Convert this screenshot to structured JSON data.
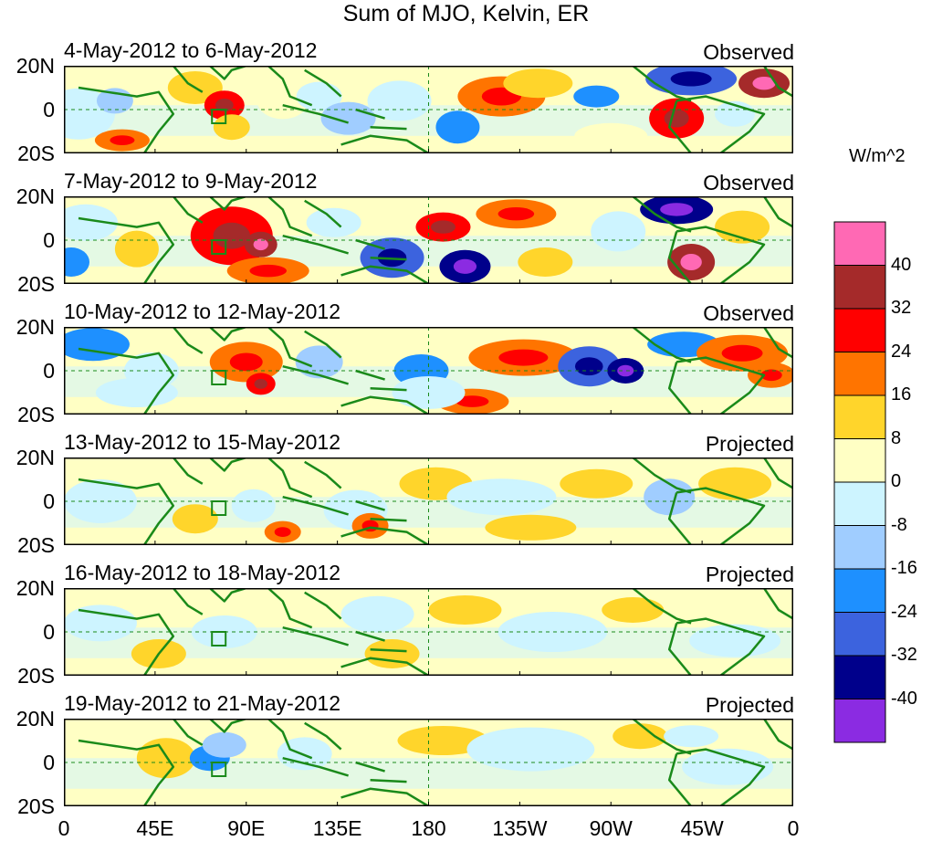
{
  "title": "Sum of MJO, Kelvin, ER",
  "units": "W/m^2",
  "y_ticks": [
    "20N",
    "0",
    "20S"
  ],
  "x_ticks": [
    "0",
    "45E",
    "90E",
    "135E",
    "180",
    "135W",
    "90W",
    "45W",
    "0"
  ],
  "panels": [
    {
      "dates": "4-May-2012 to 6-May-2012",
      "label": "Observed"
    },
    {
      "dates": "7-May-2012 to 9-May-2012",
      "label": "Observed"
    },
    {
      "dates": "10-May-2012 to 12-May-2012",
      "label": "Observed"
    },
    {
      "dates": "13-May-2012 to 15-May-2012",
      "label": "Projected"
    },
    {
      "dates": "16-May-2012 to 18-May-2012",
      "label": "Projected"
    },
    {
      "dates": "19-May-2012 to 21-May-2012",
      "label": "Projected"
    }
  ],
  "colorbar": {
    "levels": [
      "40",
      "32",
      "24",
      "16",
      "8",
      "0",
      "-8",
      "-16",
      "-24",
      "-32",
      "-40"
    ],
    "colors": [
      "#ff69b4",
      "#a52a2a",
      "#ff0000",
      "#ff7400",
      "#ffd52b",
      "#ffffc4",
      "#cdf4ff",
      "#a0cdff",
      "#1e90ff",
      "#3c63de",
      "#00008b",
      "#8b2be2"
    ]
  },
  "map_colors": {
    "coast": "#1a8a1a",
    "frame": "#000000",
    "guide": "#1a8a1a"
  }
}
